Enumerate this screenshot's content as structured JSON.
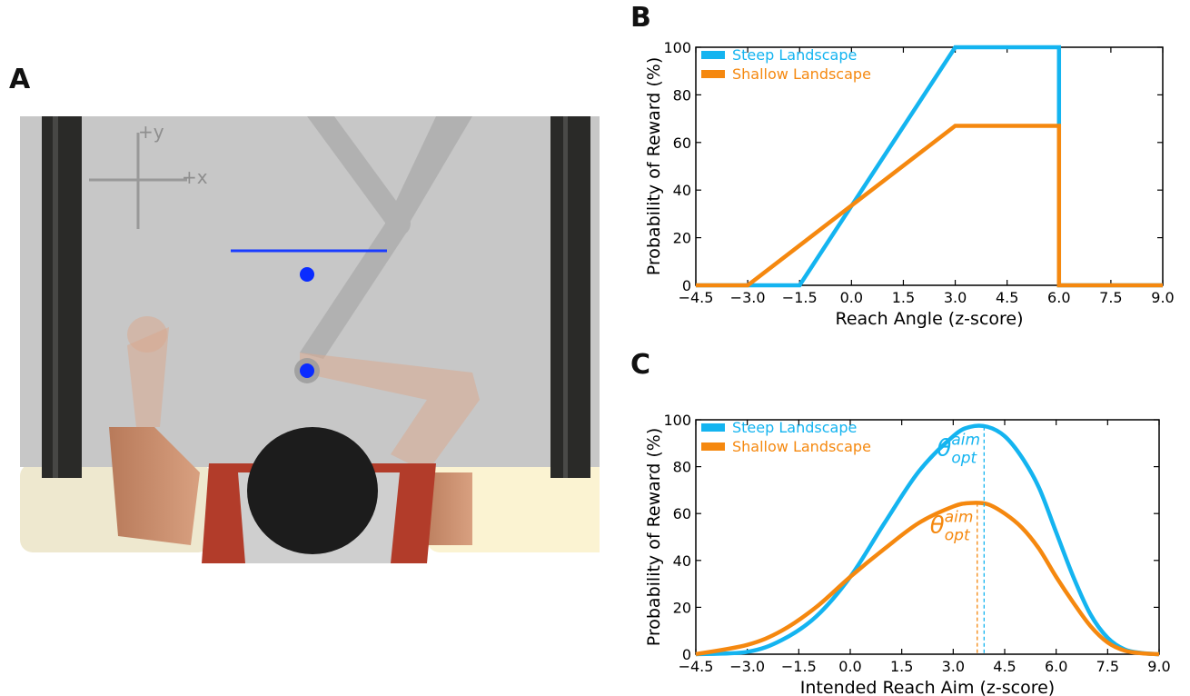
{
  "panels": {
    "a_label": "A",
    "b_label": "B",
    "c_label": "C"
  },
  "scene": {
    "axis_y_label": "+y",
    "axis_x_label": "+x",
    "colors": {
      "workspace": "#c7c7c7",
      "target": "#0a2cff",
      "target_line": "#1a3cff",
      "frame": "#2a2a28"
    }
  },
  "colors": {
    "steep": "#14b4f0",
    "shallow": "#f5880f"
  },
  "chart_data": [
    {
      "type": "line",
      "panel": "B",
      "xlabel": "Reach Angle (z-score)",
      "ylabel": "Probability of Reward (%)",
      "xlim": [
        -4.5,
        9.0
      ],
      "ylim": [
        0,
        100
      ],
      "xticks": [
        "−4.5",
        "−3.0",
        "−1.5",
        "0.0",
        "1.5",
        "3.0",
        "4.5",
        "6.0",
        "7.5",
        "9.0"
      ],
      "yticks": [
        "0",
        "20",
        "40",
        "60",
        "80",
        "100"
      ],
      "grid": false,
      "legend_position": "top-left",
      "series": [
        {
          "name": "Steep Landscape",
          "x": [
            -4.5,
            -1.5,
            3.0,
            6.0,
            6.0,
            9.0
          ],
          "y": [
            0,
            0,
            100,
            100,
            0,
            0
          ]
        },
        {
          "name": "Shallow Landscape",
          "x": [
            -4.5,
            -3.0,
            3.0,
            6.0,
            6.0,
            9.0
          ],
          "y": [
            0,
            0,
            67,
            67,
            0,
            0
          ]
        }
      ]
    },
    {
      "type": "line",
      "panel": "C",
      "xlabel": "Intended Reach Aim (z-score)",
      "ylabel": "Probability of Reward (%)",
      "xlim": [
        -4.5,
        9.0
      ],
      "ylim": [
        0,
        100
      ],
      "xticks": [
        "−4.5",
        "−3.0",
        "−1.5",
        "0.0",
        "1.5",
        "3.0",
        "4.5",
        "6.0",
        "7.5",
        "9.0"
      ],
      "yticks": [
        "0",
        "20",
        "40",
        "60",
        "80",
        "100"
      ],
      "grid": false,
      "legend_position": "top-left",
      "series": [
        {
          "name": "Steep Landscape",
          "x": [
            -4.5,
            -3.0,
            -2.0,
            -1.0,
            0.0,
            1.0,
            2.0,
            3.0,
            3.5,
            4.0,
            4.5,
            5.0,
            5.5,
            6.0,
            6.5,
            7.0,
            7.5,
            8.0,
            8.5,
            9.0
          ],
          "y": [
            0,
            1,
            6,
            16,
            33,
            56,
            78,
            93,
            97,
            97,
            93,
            84,
            71,
            52,
            33,
            17,
            7,
            2,
            0.5,
            0
          ]
        },
        {
          "name": "Shallow Landscape",
          "x": [
            -4.5,
            -3.0,
            -2.0,
            -1.0,
            0.0,
            1.0,
            2.0,
            3.0,
            3.5,
            4.0,
            4.5,
            5.0,
            5.5,
            6.0,
            6.5,
            7.0,
            7.5,
            8.0,
            8.5,
            9.0
          ],
          "y": [
            0,
            4,
            10,
            20,
            33,
            45,
            56,
            63,
            64.5,
            64,
            60,
            54,
            45,
            33,
            22,
            12,
            5,
            1.5,
            0.4,
            0
          ]
        }
      ],
      "annotations": [
        {
          "series": "Steep Landscape",
          "x": 3.9,
          "theta": "θ",
          "sup": "aim",
          "sub": "opt"
        },
        {
          "series": "Shallow Landscape",
          "x": 3.7,
          "theta": "θ",
          "sup": "aim",
          "sub": "opt"
        }
      ]
    }
  ]
}
